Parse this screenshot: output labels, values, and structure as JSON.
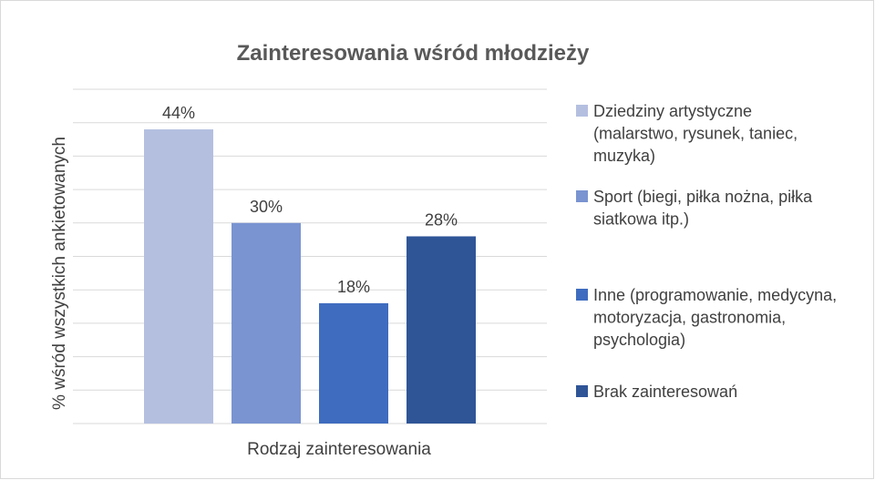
{
  "chart_data": {
    "type": "bar",
    "title": "Zainteresowania wśród młodzieży",
    "xlabel": "Rodzaj zainteresowania",
    "ylabel": "% wśród wszystkich ankietowanych",
    "categories": [
      "Rodzaj zainteresowania"
    ],
    "series": [
      {
        "name": "Dziedziny artystyczne (malarstwo, rysunek, taniec, muzyka)",
        "color": "#b4bfe0",
        "values": [
          44
        ],
        "value_labels": [
          "44%"
        ]
      },
      {
        "name": "Sport (biegi, piłka nożna, piłka siatkowa itp.)",
        "color": "#7a94d1",
        "values": [
          30
        ],
        "value_labels": [
          "30%"
        ]
      },
      {
        "name": "Inne (programowanie, medycyna, motoryzacja, gastronomia, psychologia)",
        "color": "#3f6cbf",
        "values": [
          18
        ],
        "value_labels": [
          "18%"
        ]
      },
      {
        "name": "Brak zainteresowań",
        "color": "#2f5597",
        "values": [
          28
        ],
        "value_labels": [
          "28%"
        ]
      }
    ],
    "ylim": [
      0,
      50
    ],
    "yticks": [
      0,
      5,
      10,
      15,
      20,
      25,
      30,
      35,
      40,
      45,
      50
    ],
    "grid": true,
    "legend": "right"
  }
}
